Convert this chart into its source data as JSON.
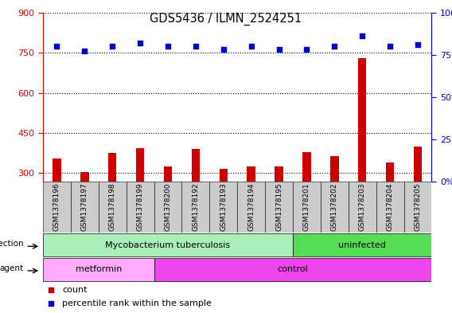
{
  "title": "GDS5436 / ILMN_2524251",
  "samples": [
    "GSM1378196",
    "GSM1378197",
    "GSM1378198",
    "GSM1378199",
    "GSM1378200",
    "GSM1378192",
    "GSM1378193",
    "GSM1378194",
    "GSM1378195",
    "GSM1378201",
    "GSM1378202",
    "GSM1378203",
    "GSM1378204",
    "GSM1378205"
  ],
  "counts": [
    355,
    305,
    375,
    395,
    325,
    390,
    315,
    325,
    325,
    380,
    365,
    730,
    340,
    400
  ],
  "percentiles": [
    80,
    77,
    80,
    82,
    80,
    80,
    78,
    80,
    78,
    78,
    80,
    86,
    80,
    81
  ],
  "ylim_left": [
    270,
    900
  ],
  "ylim_right": [
    0,
    100
  ],
  "yticks_left": [
    300,
    450,
    600,
    750,
    900
  ],
  "yticks_right": [
    0,
    25,
    50,
    75,
    100
  ],
  "infection_groups": [
    {
      "label": "Mycobacterium tuberculosis",
      "start": 0,
      "end": 9,
      "color": "#AAEEBB"
    },
    {
      "label": "uninfected",
      "start": 9,
      "end": 14,
      "color": "#55DD55"
    }
  ],
  "agent_groups": [
    {
      "label": "metformin",
      "start": 0,
      "end": 4,
      "color": "#FFAAFF"
    },
    {
      "label": "control",
      "start": 4,
      "end": 14,
      "color": "#EE44EE"
    }
  ],
  "bar_color": "#CC0000",
  "dot_color": "#0000CC",
  "background_color": "#ffffff",
  "grid_color": "#000000",
  "left_axis_color": "#CC0000",
  "right_axis_color": "#0000CC",
  "label_bg_color": "#cccccc"
}
